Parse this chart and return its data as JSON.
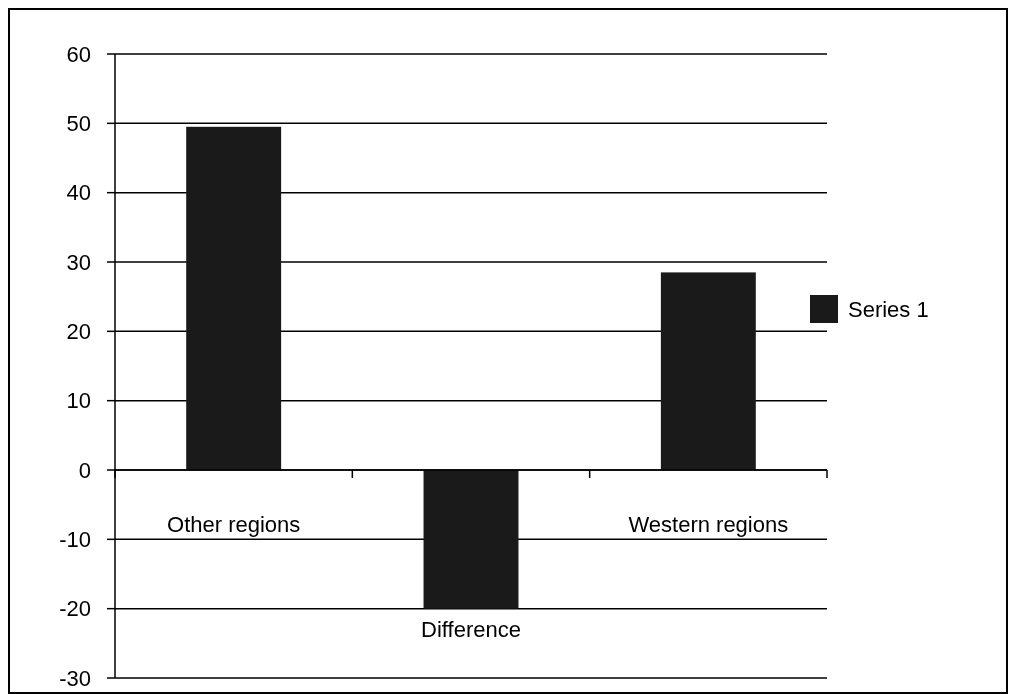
{
  "chart_data": {
    "type": "bar",
    "categories": [
      "Other regions",
      "Difference",
      "Western regions"
    ],
    "series": [
      {
        "name": "Series 1",
        "color": "#1a1a1a",
        "values": [
          49.5,
          -20,
          28.5
        ]
      }
    ],
    "ylim": [
      -30,
      60
    ],
    "yticks": [
      -30,
      -20,
      -10,
      0,
      10,
      20,
      30,
      40,
      50,
      60
    ],
    "grid": "y",
    "legend": "right"
  }
}
